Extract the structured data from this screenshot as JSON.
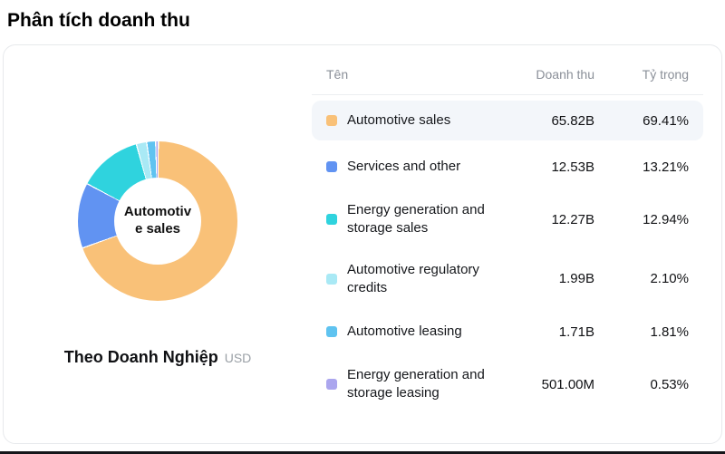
{
  "page": {
    "title": "Phân tích doanh thu"
  },
  "chart": {
    "center_label_lines": [
      "Automotiv",
      "e sales"
    ],
    "footer_label": "Theo Doanh Nghiệp",
    "footer_unit": "USD"
  },
  "table": {
    "headers": {
      "name": "Tên",
      "revenue": "Doanh thu",
      "share": "Tỷ trọng"
    },
    "rows": [
      {
        "name": "Automotive sales",
        "revenue": "65.82B",
        "share": "69.41%",
        "color": "#F9C178",
        "highlighted": true
      },
      {
        "name": "Services and other",
        "revenue": "12.53B",
        "share": "13.21%",
        "color": "#6193F2",
        "highlighted": false
      },
      {
        "name": "Energy generation and storage sales",
        "revenue": "12.27B",
        "share": "12.94%",
        "color": "#2FD3DE",
        "highlighted": false
      },
      {
        "name": "Automotive regulatory credits",
        "revenue": "1.99B",
        "share": "2.10%",
        "color": "#A9E9F5",
        "highlighted": false
      },
      {
        "name": "Automotive leasing",
        "revenue": "1.71B",
        "share": "1.81%",
        "color": "#5FC3F0",
        "highlighted": false
      },
      {
        "name": "Energy generation and storage leasing",
        "revenue": "501.00M",
        "share": "0.53%",
        "color": "#ABA6EE",
        "highlighted": false
      }
    ]
  },
  "chart_data": {
    "type": "pie",
    "donut": true,
    "title": "Phân tích doanh thu",
    "unit": "USD",
    "center_label": "Automotive sales",
    "legend_position": "right",
    "categories": [
      "Automotive sales",
      "Services and other",
      "Energy generation and storage sales",
      "Automotive regulatory credits",
      "Automotive leasing",
      "Energy generation and storage leasing"
    ],
    "values": [
      69.41,
      13.21,
      12.94,
      2.1,
      1.81,
      0.53
    ],
    "revenues": [
      "65.82B",
      "12.53B",
      "12.27B",
      "1.99B",
      "1.71B",
      "501.00M"
    ],
    "colors": [
      "#F9C178",
      "#6193F2",
      "#2FD3DE",
      "#A9E9F5",
      "#5FC3F0",
      "#ABA6EE"
    ]
  }
}
